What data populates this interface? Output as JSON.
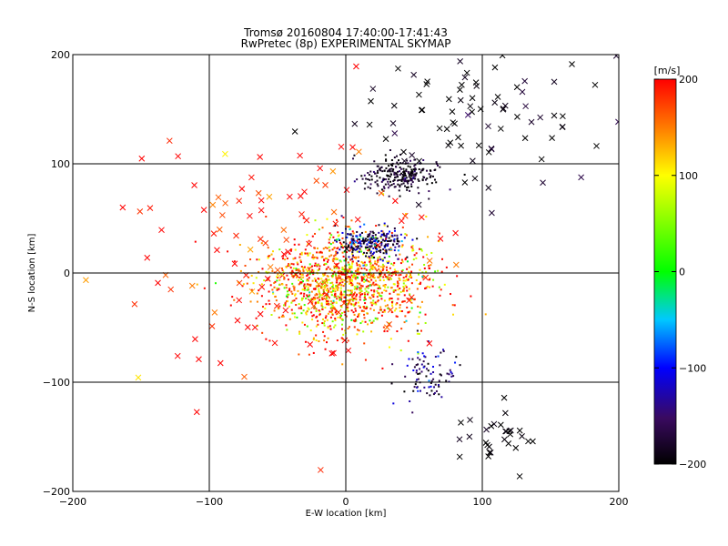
{
  "chart_data": {
    "type": "scatter",
    "title": "Tromsø 20160804 17:40:00-17:41:43",
    "subtitle": "RwPretec (8p) EXPERIMENTAL SKYMAP",
    "xlabel": "E-W location [km]",
    "ylabel": "N-S location [km]",
    "xlim": [
      -200,
      200
    ],
    "ylim": [
      -200,
      200
    ],
    "x_ticks": [
      -200,
      -100,
      0,
      100,
      200
    ],
    "y_ticks": [
      -200,
      -100,
      0,
      100,
      200
    ],
    "x_tick_labels": [
      "−200",
      "−100",
      "0",
      "100",
      "200"
    ],
    "y_tick_labels": [
      "−200",
      "−100",
      "0",
      "100",
      "200"
    ],
    "grid": true,
    "markers": [
      "dot",
      "x"
    ],
    "colorbar": {
      "label": "[m/s]",
      "min": -200,
      "max": 200,
      "ticks": [
        -200,
        -100,
        0,
        100,
        200
      ],
      "tick_labels": [
        "−200",
        "−100",
        "0",
        "100",
        "200"
      ],
      "colormap": "black-purple-blue-cyan-green-yellow-red"
    },
    "series": [
      {
        "cluster": "central",
        "marker": "dot",
        "center": [
          0,
          -10
        ],
        "spread": [
          30,
          22
        ],
        "velocity_mean": 150,
        "velocity_sd": 70,
        "count": 1400
      },
      {
        "cluster": "north-east",
        "marker": "dot",
        "center": [
          40,
          90
        ],
        "spread": [
          14,
          8
        ],
        "velocity_mean": -185,
        "velocity_sd": 20,
        "count": 260
      },
      {
        "cluster": "center-north",
        "marker": "dot",
        "center": [
          18,
          28
        ],
        "spread": [
          12,
          8
        ],
        "velocity_mean": -150,
        "velocity_sd": 50,
        "count": 240
      },
      {
        "cluster": "south-east-arm",
        "marker": "dot",
        "center": [
          60,
          -95
        ],
        "spread": [
          10,
          15
        ],
        "velocity_mean": -150,
        "velocity_sd": 40,
        "count": 90
      },
      {
        "cluster": "north-east-sparse",
        "marker": "x",
        "center": [
          100,
          140
        ],
        "spread": [
          50,
          35
        ],
        "velocity_mean": -200,
        "velocity_sd": 20,
        "count": 90
      },
      {
        "cluster": "south-east-crosses",
        "marker": "x",
        "center": [
          110,
          -150
        ],
        "spread": [
          15,
          12
        ],
        "velocity_mean": -200,
        "velocity_sd": 10,
        "count": 30
      },
      {
        "cluster": "west-halo",
        "marker": "x",
        "center": [
          -50,
          10
        ],
        "spread": [
          60,
          60
        ],
        "velocity_mean": 190,
        "velocity_sd": 30,
        "count": 120
      }
    ]
  }
}
